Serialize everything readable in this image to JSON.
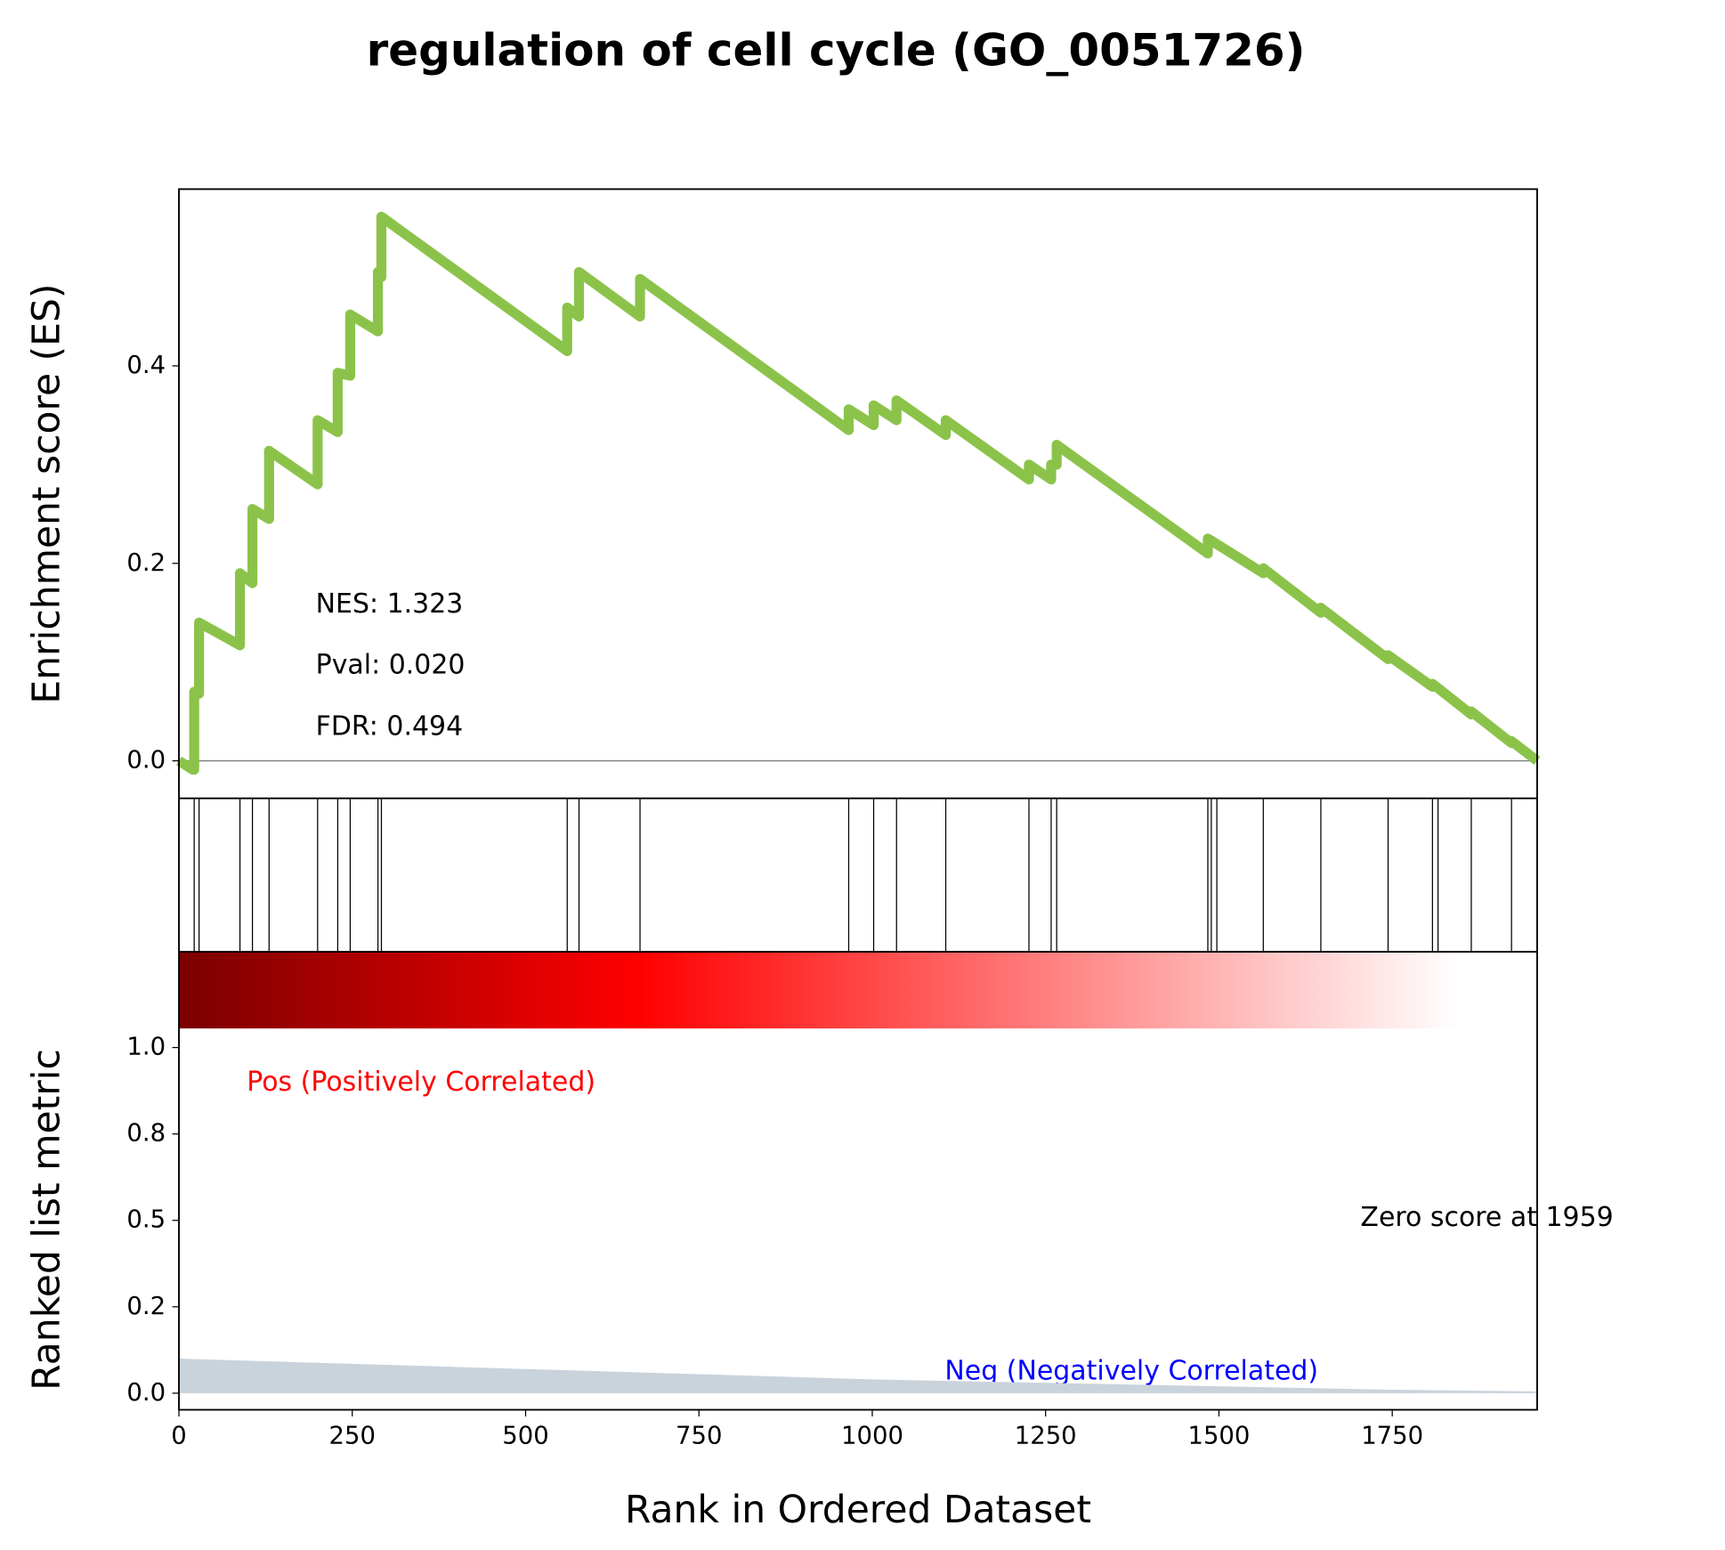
{
  "chart_data": {
    "type": "line",
    "title": "regulation of cell cycle (GO_0051726)",
    "x_label": "Rank in Ordered Dataset",
    "y_label": "Enrichment score (ES)",
    "metric_label": "Ranked list metric",
    "annotations": [
      "NES: 1.323",
      "Pval: 0.020",
      "FDR: 0.494"
    ],
    "pos_label": "Pos (Positively Correlated)",
    "neg_label": "Neg (Negatively Correlated)",
    "zero_label": "Zero score at 1959",
    "color": "#8bc34a",
    "x": [
      0,
      20,
      22,
      22,
      29,
      29,
      88,
      88,
      106,
      106,
      130,
      130,
      200,
      200,
      229,
      229,
      247,
      247,
      287,
      287,
      292,
      292,
      560,
      560,
      577,
      577,
      665,
      665,
      966,
      966,
      1002,
      1002,
      1035,
      1035,
      1106,
      1106,
      1226,
      1226,
      1258,
      1258,
      1266,
      1266,
      1484,
      1484,
      1489,
      1564,
      1564,
      1647,
      1647,
      1744,
      1744,
      1808,
      1808,
      1864,
      1864,
      1922,
      1922,
      1959
    ],
    "values": [
      0,
      -0.009,
      -0.009,
      0.07,
      0.068,
      0.14,
      0.117,
      0.19,
      0.18,
      0.255,
      0.245,
      0.314,
      0.28,
      0.345,
      0.333,
      0.393,
      0.39,
      0.452,
      0.435,
      0.495,
      0.49,
      0.551,
      0.415,
      0.459,
      0.45,
      0.495,
      0.45,
      0.488,
      0.335,
      0.356,
      0.34,
      0.36,
      0.345,
      0.365,
      0.33,
      0.345,
      0.285,
      0.3,
      0.285,
      0.3,
      0.3,
      0.32,
      0.21,
      0.225,
      0.223,
      0.19,
      0.195,
      0.15,
      0.155,
      0.103,
      0.107,
      0.075,
      0.078,
      0.047,
      0.05,
      0.018,
      0.02,
      0
    ],
    "xlim": [
      0,
      1959
    ],
    "xticks": [
      0,
      250,
      500,
      750,
      1000,
      1250,
      1500,
      1750
    ],
    "ylim": [
      -0.038,
      0.579
    ],
    "yticks": [
      {
        "value": 0,
        "label": "0.0"
      },
      0.2,
      0.4
    ],
    "hits": [
      22,
      29,
      88,
      106,
      130,
      200,
      229,
      247,
      287,
      292,
      560,
      577,
      665,
      966,
      1002,
      1035,
      1106,
      1226,
      1258,
      1266,
      1484,
      1489,
      1497,
      1564,
      1647,
      1744,
      1808,
      1816,
      1864,
      1922
    ],
    "metric": {
      "x": [
        0,
        250,
        500,
        750,
        1000,
        1250,
        1500,
        1750,
        1959
      ],
      "values": [
        0.1,
        0.085,
        0.07,
        0.055,
        0.04,
        0.03,
        0.02,
        0.01,
        0.005
      ],
      "color": "#c9d3dc",
      "ylim": [
        -0.048,
        1.277
      ],
      "yticks": [
        {
          "value": 0,
          "label": "0.0"
        },
        {
          "value": 0.25,
          "label": "0.2"
        },
        0.5,
        {
          "value": 0.75,
          "label": "0.8"
        },
        {
          "value": 1,
          "label": "1.0"
        }
      ]
    }
  }
}
